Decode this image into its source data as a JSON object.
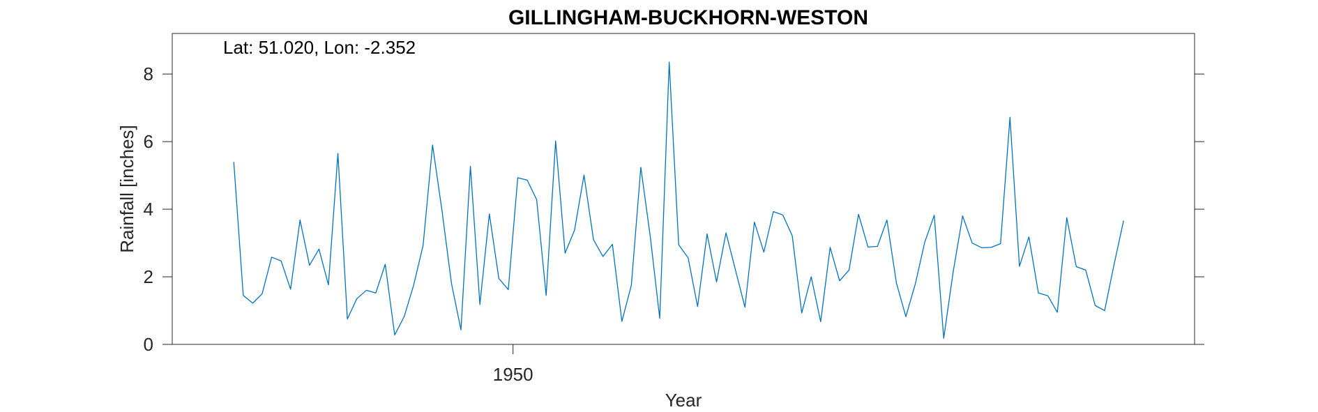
{
  "chart_data": {
    "type": "line",
    "title": "GILLINGHAM-BUCKHORN-WESTON",
    "xlabel": "Year",
    "ylabel": "Rainfall [inches]",
    "annotation": "Lat: 51.020, Lon: -2.352",
    "xlim": [
      1914,
      2022
    ],
    "ylim": [
      0,
      9.2
    ],
    "x_ticks": [
      1950
    ],
    "x_tick_labels": [
      "1950"
    ],
    "y_ticks": [
      0,
      2,
      4,
      6,
      8
    ],
    "y_tick_labels": [
      "0",
      "2",
      "4",
      "6",
      "8"
    ],
    "grid": false,
    "series": [
      {
        "color": "#0072BD",
        "x_start": 1920.5,
        "x_step": 1,
        "values": [
          5.4,
          1.45,
          1.22,
          1.5,
          2.58,
          2.47,
          1.63,
          3.68,
          2.34,
          2.82,
          1.76,
          5.65,
          0.75,
          1.35,
          1.6,
          1.52,
          2.37,
          0.28,
          0.82,
          1.75,
          2.93,
          5.9,
          3.95,
          1.8,
          0.43,
          5.27,
          1.18,
          3.86,
          1.95,
          1.62,
          4.93,
          4.86,
          4.28,
          1.45,
          6.02,
          2.7,
          3.38,
          5.01,
          3.1,
          2.6,
          2.96,
          0.68,
          1.75,
          5.24,
          3.19,
          0.77,
          8.35,
          2.95,
          2.56,
          1.12,
          3.27,
          1.85,
          3.3,
          2.2,
          1.1,
          3.62,
          2.73,
          3.93,
          3.83,
          3.21,
          0.93,
          2.0,
          0.67,
          2.87,
          1.88,
          2.2,
          3.85,
          2.88,
          2.9,
          3.68,
          1.82,
          0.82,
          1.79,
          3.03,
          3.82,
          0.18,
          2.15,
          3.8,
          3.0,
          2.86,
          2.87,
          2.98,
          6.72,
          2.31,
          3.18,
          1.52,
          1.44,
          0.95,
          3.75,
          2.3,
          2.2,
          1.15,
          1.0,
          2.37,
          3.66
        ]
      }
    ]
  }
}
